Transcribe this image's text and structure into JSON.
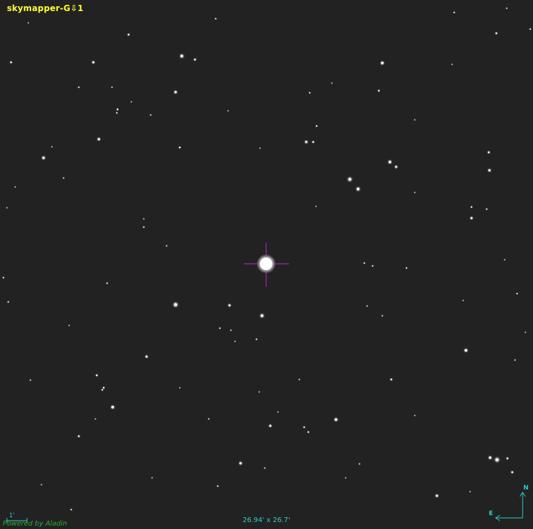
{
  "survey": {
    "name": "skymapper-G⇩1"
  },
  "field_of_view": "26.94' x 26.7'",
  "scale_bar": {
    "label": "1'"
  },
  "attribution": "Powered by Aladin",
  "compass": {
    "north": "N",
    "east": "E"
  },
  "colors": {
    "background": "#222222",
    "survey_label": "#ffff33",
    "overlay": "#33cccc",
    "target_reticle": "#cc22cc",
    "attribution": "#33aa33"
  },
  "target_reticle": {
    "icon": "crosshair-icon"
  }
}
